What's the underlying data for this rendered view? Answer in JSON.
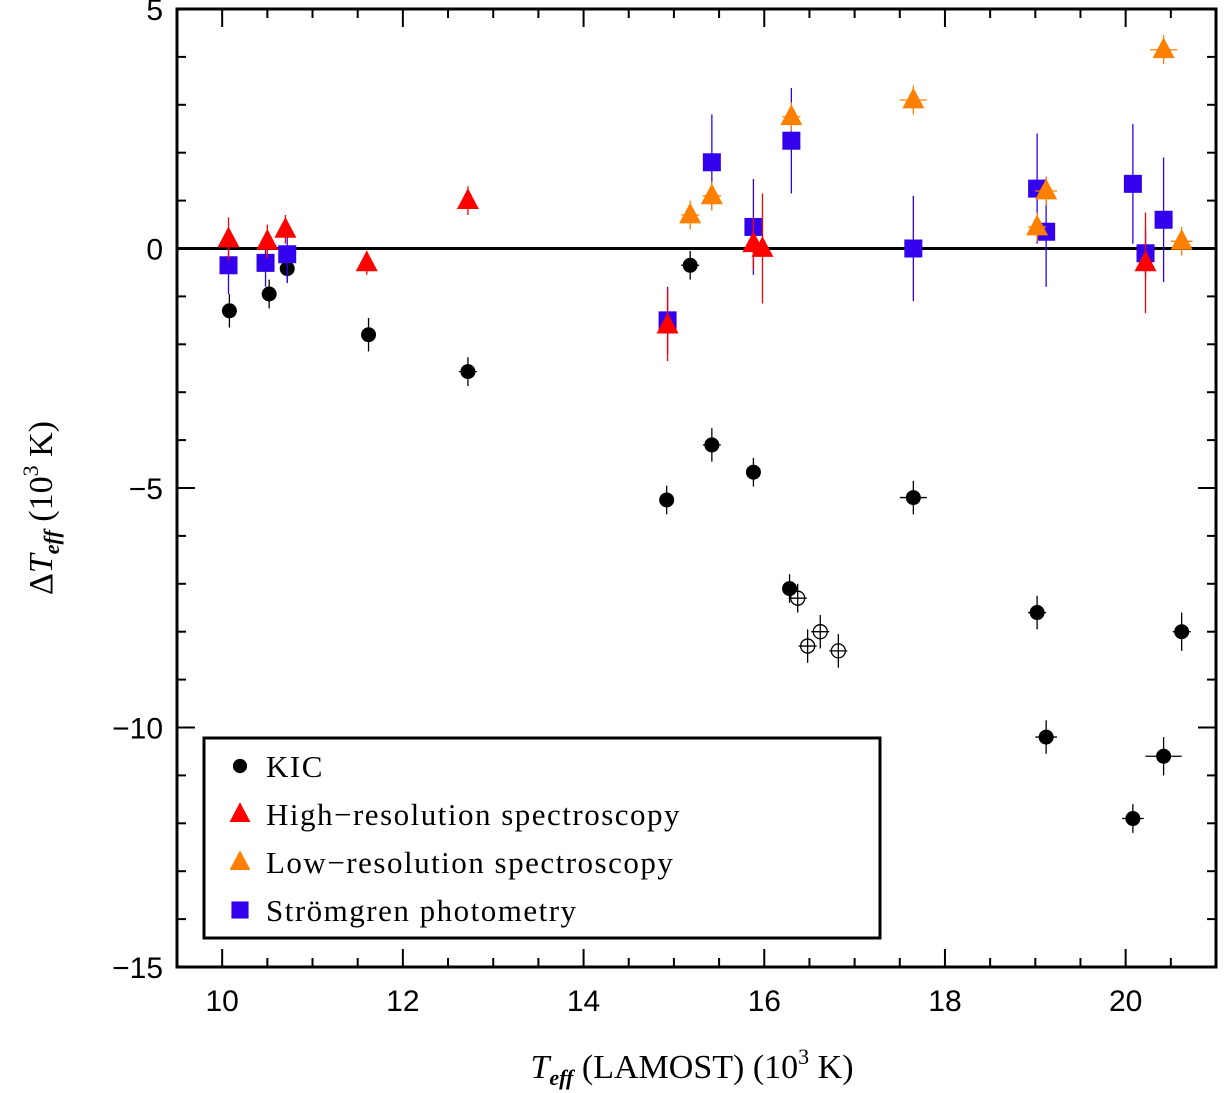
{
  "chart_data": {
    "type": "scatter",
    "xlabel": "T_eff (LAMOST) (10^3 K)",
    "xlabel_parts": {
      "symbol": "T",
      "subscript": "eff",
      "rest": " (LAMOST) (10",
      "power": "3",
      "unit": " K)"
    },
    "ylabel": "ΔT_eff (10^3 K)",
    "ylabel_parts": {
      "delta": "Δ",
      "symbol": "T",
      "subscript": "eff",
      "rest": " (10",
      "power": "3",
      "unit": " K)"
    },
    "xlim": [
      9.5,
      21.0
    ],
    "ylim": [
      -15.0,
      5.0
    ],
    "xticks": [
      10,
      12,
      14,
      16,
      18,
      20
    ],
    "xtick_labels": [
      "10",
      "12",
      "14",
      "16",
      "18",
      "20"
    ],
    "yticks": [
      -15,
      -10,
      -5,
      0,
      5
    ],
    "ytick_labels": [
      "−15",
      "−10",
      "−5",
      "0",
      "5"
    ],
    "zero_line": true,
    "legend_position": "bottom-left",
    "colors": {
      "kic": "#000000",
      "high": "#ff0000",
      "low": "#ff8000",
      "strom": "#3300ee"
    },
    "series": [
      {
        "name": "KIC",
        "marker": "circle",
        "color": "#000000",
        "points": [
          {
            "x": 10.08,
            "y": -1.3,
            "ye": 0.35,
            "xe": 0.08
          },
          {
            "x": 10.52,
            "y": -0.95,
            "ye": 0.3,
            "xe": 0.08
          },
          {
            "x": 10.72,
            "y": -0.42,
            "ye": 0.3,
            "xe": 0.08
          },
          {
            "x": 11.62,
            "y": -1.8,
            "ye": 0.35,
            "xe": 0.08
          },
          {
            "x": 12.72,
            "y": -2.57,
            "ye": 0.3,
            "xe": 0.1
          },
          {
            "x": 14.92,
            "y": -5.25,
            "ye": 0.3,
            "xe": 0.08
          },
          {
            "x": 15.18,
            "y": -0.35,
            "ye": 0.3,
            "xe": 0.1
          },
          {
            "x": 15.42,
            "y": -4.1,
            "ye": 0.35,
            "xe": 0.1
          },
          {
            "x": 15.88,
            "y": -4.67,
            "ye": 0.3,
            "xe": 0.08
          },
          {
            "x": 16.28,
            "y": -7.1,
            "ye": 0.3,
            "xe": 0.08
          },
          {
            "x": 17.65,
            "y": -5.2,
            "ye": 0.35,
            "xe": 0.15
          },
          {
            "x": 19.02,
            "y": -7.6,
            "ye": 0.35,
            "xe": 0.1
          },
          {
            "x": 19.12,
            "y": -10.2,
            "ye": 0.35,
            "xe": 0.12
          },
          {
            "x": 20.08,
            "y": -11.9,
            "ye": 0.3,
            "xe": 0.12
          },
          {
            "x": 20.42,
            "y": -10.6,
            "ye": 0.4,
            "xe": 0.2
          },
          {
            "x": 20.62,
            "y": -8.0,
            "ye": 0.4,
            "xe": 0.1
          }
        ]
      },
      {
        "name": "KIC (open)",
        "marker": "open-circle",
        "color": "#000000",
        "legend": false,
        "points": [
          {
            "x": 16.37,
            "y": -7.3,
            "ye": 0.3,
            "xe": 0.1
          },
          {
            "x": 16.48,
            "y": -8.3,
            "ye": 0.35,
            "xe": 0.1
          },
          {
            "x": 16.62,
            "y": -8.0,
            "ye": 0.35,
            "xe": 0.1
          },
          {
            "x": 16.82,
            "y": -8.4,
            "ye": 0.35,
            "xe": 0.1
          }
        ]
      },
      {
        "name": "Strömgren photometry",
        "marker": "square",
        "color": "#3300ee",
        "points": [
          {
            "x": 10.07,
            "y": -0.35,
            "ye": 0.6,
            "xe": 0
          },
          {
            "x": 10.48,
            "y": -0.3,
            "ye": 0.5,
            "xe": 0
          },
          {
            "x": 10.72,
            "y": -0.12,
            "ye": 0.6,
            "xe": 0
          },
          {
            "x": 14.93,
            "y": -1.5,
            "ye": 0.7,
            "xe": 0
          },
          {
            "x": 15.42,
            "y": 1.8,
            "ye": 1.0,
            "xe": 0
          },
          {
            "x": 15.88,
            "y": 0.45,
            "ye": 1.0,
            "xe": 0
          },
          {
            "x": 16.3,
            "y": 2.25,
            "ye": 1.1,
            "xe": 0
          },
          {
            "x": 17.65,
            "y": 0.0,
            "ye": 1.1,
            "xe": 0
          },
          {
            "x": 19.02,
            "y": 1.25,
            "ye": 1.15,
            "xe": 0
          },
          {
            "x": 19.12,
            "y": 0.35,
            "ye": 1.15,
            "xe": 0
          },
          {
            "x": 20.08,
            "y": 1.35,
            "ye": 1.25,
            "xe": 0
          },
          {
            "x": 20.22,
            "y": -0.1,
            "ye": 0.5,
            "xe": 0.1
          },
          {
            "x": 20.42,
            "y": 0.6,
            "ye": 1.3,
            "xe": 0.1
          }
        ]
      },
      {
        "name": "High-resolution spectroscopy",
        "marker": "triangle",
        "color": "#ff0000",
        "points": [
          {
            "x": 10.07,
            "y": 0.2,
            "ye": 0.45,
            "xe": 0
          },
          {
            "x": 10.5,
            "y": 0.15,
            "ye": 0.35,
            "xe": 0
          },
          {
            "x": 10.7,
            "y": 0.4,
            "ye": 0.3,
            "xe": 0
          },
          {
            "x": 11.6,
            "y": -0.3,
            "ye": 0.25,
            "xe": 0
          },
          {
            "x": 12.72,
            "y": 1.0,
            "ye": 0.3,
            "xe": 0
          },
          {
            "x": 14.93,
            "y": -1.6,
            "ye": 0.75,
            "xe": 0
          },
          {
            "x": 15.88,
            "y": 0.1,
            "ye": 0.55,
            "xe": 0
          },
          {
            "x": 15.98,
            "y": 0.0,
            "ye": 1.15,
            "xe": 0
          },
          {
            "x": 20.22,
            "y": -0.3,
            "ye": 1.05,
            "xe": 0
          }
        ]
      },
      {
        "name": "Low-resolution spectroscopy",
        "marker": "triangle",
        "color": "#ff8000",
        "points": [
          {
            "x": 15.18,
            "y": 0.7,
            "ye": 0.3,
            "xe": 0.1
          },
          {
            "x": 15.42,
            "y": 1.1,
            "ye": 0.3,
            "xe": 0.1
          },
          {
            "x": 16.3,
            "y": 2.75,
            "ye": 0.3,
            "xe": 0.1
          },
          {
            "x": 17.65,
            "y": 3.1,
            "ye": 0.3,
            "xe": 0.15
          },
          {
            "x": 19.02,
            "y": 0.45,
            "ye": 0.3,
            "xe": 0.1
          },
          {
            "x": 19.12,
            "y": 1.2,
            "ye": 0.3,
            "xe": 0.12
          },
          {
            "x": 20.42,
            "y": 4.15,
            "ye": 0.3,
            "xe": 0.15
          },
          {
            "x": 20.62,
            "y": 0.15,
            "ye": 0.3,
            "xe": 0.12
          }
        ]
      }
    ],
    "legend": [
      {
        "label": "KIC",
        "marker": "circle",
        "color": "#000000"
      },
      {
        "label": "High−resolution spectroscopy",
        "marker": "triangle",
        "color": "#ff0000"
      },
      {
        "label": "Low−resolution spectroscopy",
        "marker": "triangle",
        "color": "#ff8000"
      },
      {
        "label": "Strömgren photometry",
        "marker": "square",
        "color": "#3300ee"
      }
    ]
  }
}
